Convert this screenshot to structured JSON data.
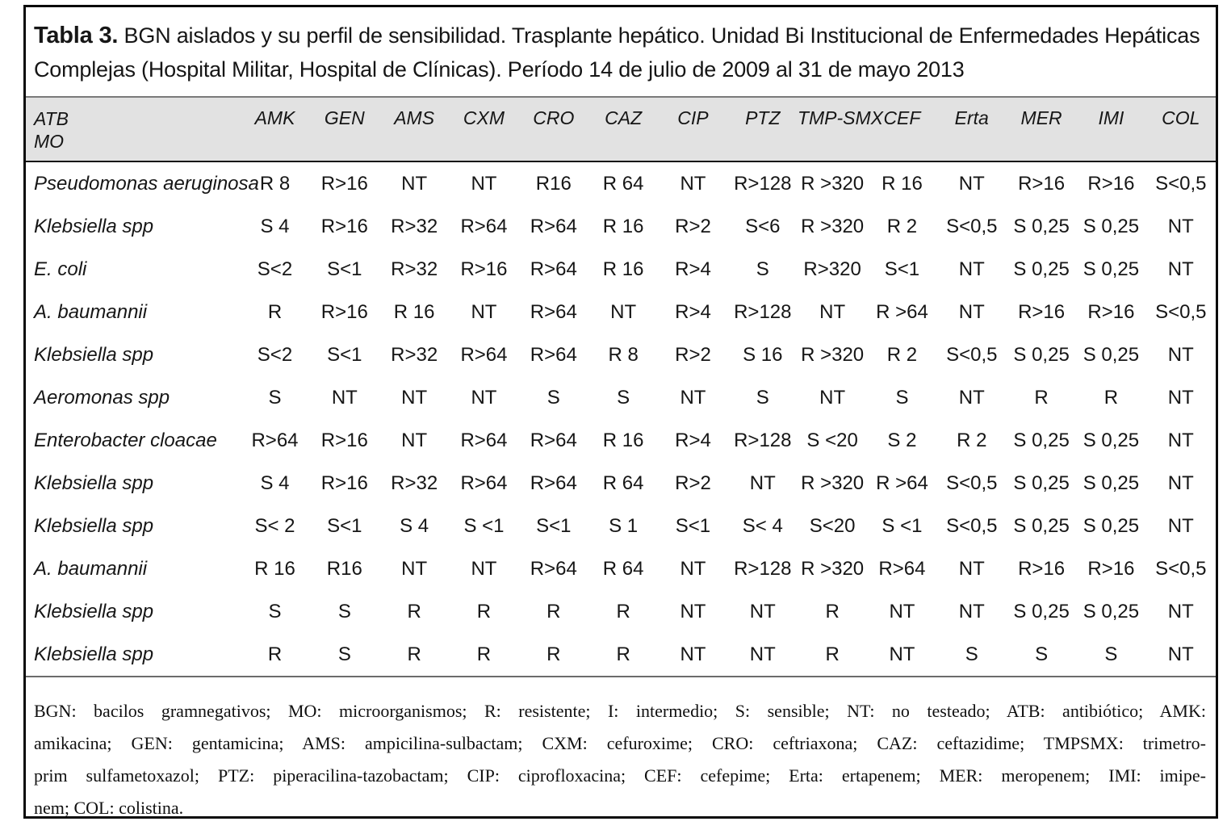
{
  "title": {
    "label": "Tabla 3.",
    "text": " BGN aislados y su perfil de sensibilidad. Trasplante hepático. Unidad Bi Institucional de Enfermedades Hepáticas Complejas (Hospital Militar, Hospital de Clínicas). Período 14 de julio de 2009 al 31 de mayo 2013"
  },
  "table": {
    "header": {
      "col1_line1": "ATB",
      "col1_line2": "MO",
      "columns": [
        "AMK",
        "GEN",
        "AMS",
        "CXM",
        "CRO",
        "CAZ",
        "CIP",
        "PTZ",
        "TMP-SMX",
        "CEF",
        "Erta",
        "MER",
        "IMI",
        "COL"
      ]
    },
    "rows": [
      {
        "organism": "Pseudomonas aeruginosa",
        "values": [
          "R 8",
          "R>16",
          "NT",
          "NT",
          "R16",
          "R 64",
          "NT",
          "R>128",
          "R >320",
          "R 16",
          "NT",
          "R>16",
          "R>16",
          "S<0,5"
        ]
      },
      {
        "organism": "Klebsiella spp",
        "values": [
          "S 4",
          "R>16",
          "R>32",
          "R>64",
          "R>64",
          "R 16",
          "R>2",
          "S<6",
          "R >320",
          "R 2",
          "S<0,5",
          "S 0,25",
          "S 0,25",
          "NT"
        ]
      },
      {
        "organism": "E. coli",
        "values": [
          "S<2",
          "S<1",
          "R>32",
          "R>16",
          "R>64",
          "R 16",
          "R>4",
          "S",
          "R>320",
          "S<1",
          "NT",
          "S 0,25",
          "S 0,25",
          "NT"
        ]
      },
      {
        "organism": "A. baumannii",
        "values": [
          "R",
          "R>16",
          "R 16",
          "NT",
          "R>64",
          "NT",
          "R>4",
          "R>128",
          "NT",
          "R >64",
          "NT",
          "R>16",
          "R>16",
          "S<0,5"
        ]
      },
      {
        "organism": "Klebsiella spp",
        "values": [
          "S<2",
          "S<1",
          "R>32",
          "R>64",
          "R>64",
          "R 8",
          "R>2",
          "S 16",
          "R >320",
          "R 2",
          "S<0,5",
          "S 0,25",
          "S 0,25",
          "NT"
        ]
      },
      {
        "organism": "Aeromonas spp",
        "values": [
          "S",
          "NT",
          "NT",
          "NT",
          "S",
          "S",
          "NT",
          "S",
          "NT",
          "S",
          "NT",
          "R",
          "R",
          "NT"
        ]
      },
      {
        "organism": "Enterobacter cloacae",
        "values": [
          "R>64",
          "R>16",
          "NT",
          "R>64",
          "R>64",
          "R 16",
          "R>4",
          "R>128",
          "S <20",
          "S 2",
          "R 2",
          "S 0,25",
          "S 0,25",
          "NT"
        ]
      },
      {
        "organism": "Klebsiella spp",
        "values": [
          "S 4",
          "R>16",
          "R>32",
          "R>64",
          "R>64",
          "R 64",
          "R>2",
          "NT",
          "R >320",
          "R >64",
          "S<0,5",
          "S 0,25",
          "S 0,25",
          "NT"
        ]
      },
      {
        "organism": "Klebsiella spp",
        "values": [
          "S< 2",
          "S<1",
          "S 4",
          "S <1",
          "S<1",
          "S 1",
          "S<1",
          "S< 4",
          "S<20",
          "S <1",
          "S<0,5",
          "S 0,25",
          "S 0,25",
          "NT"
        ]
      },
      {
        "organism": "A. baumannii",
        "values": [
          "R 16",
          "R16",
          "NT",
          "NT",
          "R>64",
          "R 64",
          "NT",
          "R>128",
          "R >320",
          "R>64",
          "NT",
          "R>16",
          "R>16",
          "S<0,5"
        ]
      },
      {
        "organism": "Klebsiella spp",
        "values": [
          "S",
          "S",
          "R",
          "R",
          "R",
          "R",
          "NT",
          "NT",
          "R",
          "NT",
          "NT",
          "S 0,25",
          "S 0,25",
          "NT"
        ]
      },
      {
        "organism": "Klebsiella spp",
        "values": [
          "R",
          "S",
          "R",
          "R",
          "R",
          "R",
          "NT",
          "NT",
          "R",
          "NT",
          "S",
          "S",
          "S",
          "NT"
        ]
      }
    ]
  },
  "footnote": {
    "lines": [
      "BGN: bacilos gramnegativos; MO: microorganismos; R: resistente; I: intermedio; S: sensible; NT: no testeado; ATB: antibiótico; AMK:",
      "amikacina; GEN: gentamicina; AMS: ampicilina-sulbactam; CXM: cefuroxime; CRO: ceftriaxona; CAZ: ceftazidime; TMPSMX: trimetro-",
      "prim sulfametoxazol; PTZ: piperacilina-tazobactam; CIP: ciprofloxacina; CEF: cefepime; Erta: ertapenem; MER: meropenem; IMI: imipe-",
      "nem; COL: colistina."
    ]
  },
  "colors": {
    "header_band": "#e2e2e2",
    "frame_border": "#0a0a0a",
    "rule_above_header": "#7a7a7a",
    "rule_below_header": "#151515",
    "rule_below_table": "#6b6b6b"
  }
}
